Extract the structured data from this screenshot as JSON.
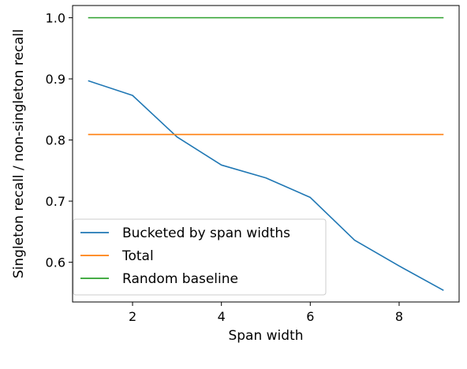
{
  "chart_data": {
    "type": "line",
    "xlabel": "Span width",
    "ylabel": "Singleton recall / non-singleton recall",
    "xlim": [
      0.65,
      9.35
    ],
    "ylim": [
      0.535,
      1.02
    ],
    "xticks": [
      2,
      4,
      6,
      8
    ],
    "yticks": [
      0.6,
      0.7,
      0.8,
      0.9,
      1.0
    ],
    "ytick_labels": [
      "0.6",
      "0.7",
      "0.8",
      "0.9",
      "1.0"
    ],
    "grid": false,
    "legend_position": "lower-left",
    "series": [
      {
        "name": "Bucketed by span widths",
        "color": "#1f77b4",
        "x": [
          1,
          2,
          3,
          4,
          5,
          6,
          7,
          8,
          9
        ],
        "y": [
          0.897,
          0.873,
          0.805,
          0.759,
          0.738,
          0.706,
          0.636,
          0.594,
          0.554
        ]
      },
      {
        "name": "Total",
        "color": "#ff7f0e",
        "x": [
          1,
          9
        ],
        "y": [
          0.809,
          0.809
        ]
      },
      {
        "name": "Random baseline",
        "color": "#2ca02c",
        "x": [
          1,
          9
        ],
        "y": [
          1.0,
          1.0
        ]
      }
    ]
  }
}
